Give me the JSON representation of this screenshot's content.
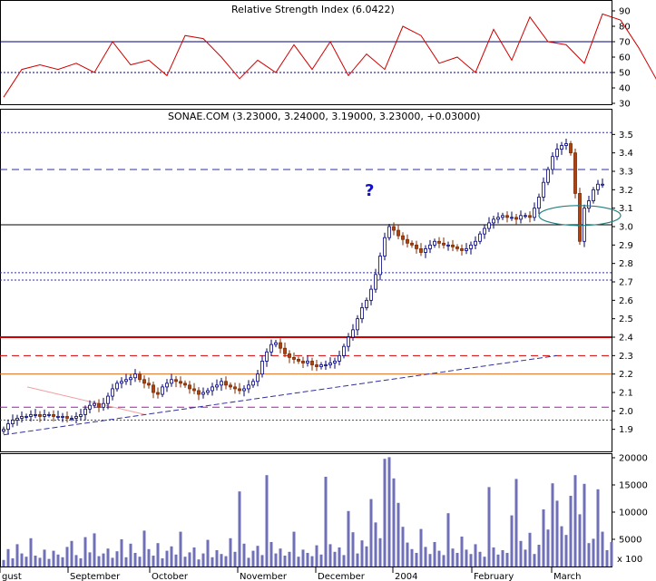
{
  "chart_data": [
    {
      "type": "line",
      "panel": "rsi",
      "title": "Relative Strength Index (6.0422)",
      "ylim": [
        30,
        90
      ],
      "yticks": [
        30,
        40,
        50,
        60,
        70,
        80,
        90
      ],
      "reference_levels": [
        70,
        50
      ],
      "series": [
        {
          "color": "#d00000",
          "x_index": [
            0,
            4,
            8,
            12,
            16,
            20,
            24,
            28,
            32,
            36,
            40,
            44,
            48,
            52,
            56,
            60,
            64,
            68,
            72,
            76,
            80,
            84,
            88,
            92,
            96,
            100,
            104,
            108,
            112,
            116,
            120,
            124,
            128,
            132,
            136,
            140,
            144,
            148
          ],
          "values": [
            34,
            52,
            55,
            52,
            56,
            50,
            70,
            55,
            58,
            48,
            74,
            72,
            60,
            46,
            58,
            50,
            68,
            52,
            70,
            48,
            62,
            52,
            80,
            74,
            56,
            60,
            50,
            78,
            58,
            86,
            70,
            68,
            56,
            88,
            84,
            66,
            45,
            55
          ]
        }
      ]
    },
    {
      "type": "candlestick",
      "panel": "price",
      "title": "SONAE.COM (3.23000, 3.24000, 3.19000, 3.23000, +0.03000)",
      "ylim": [
        1.8,
        3.6
      ],
      "yticks": [
        1.9,
        2.0,
        2.1,
        2.2,
        2.3,
        2.4,
        2.5,
        2.6,
        2.7,
        2.8,
        2.9,
        3.0,
        3.1,
        3.2,
        3.3,
        3.4,
        3.5
      ],
      "annotation_text": "?",
      "horizontal_levels": [
        {
          "value": 3.51,
          "color": "#3030a0",
          "style": "dotted"
        },
        {
          "value": 3.31,
          "color": "#3030a0",
          "style": "dashed"
        },
        {
          "value": 3.01,
          "color": "#000000",
          "style": "solid"
        },
        {
          "value": 2.75,
          "color": "#3030a0",
          "style": "dotted"
        },
        {
          "value": 2.71,
          "color": "#3030a0",
          "style": "dotted"
        },
        {
          "value": 2.4,
          "color": "#d00000",
          "style": "solid"
        },
        {
          "value": 2.3,
          "color": "#d00000",
          "style": "dashed"
        },
        {
          "value": 2.2,
          "color": "#e07020",
          "style": "solid"
        },
        {
          "value": 2.02,
          "color": "#cc00cc",
          "style": "dashed"
        },
        {
          "value": 1.95,
          "color": "#cc00cc",
          "style": "dotted"
        }
      ],
      "trendline": {
        "from": [
          0,
          1.87
        ],
        "to": [
          150,
          2.3
        ],
        "color": "#3030a0"
      },
      "highlight_ellipse": {
        "center_index": 127,
        "value": 3.06,
        "color": "#208080"
      },
      "closes": [
        1.9,
        1.93,
        1.95,
        1.96,
        1.97,
        1.97,
        1.98,
        1.98,
        1.97,
        1.98,
        1.98,
        1.97,
        1.97,
        1.97,
        1.96,
        1.96,
        1.97,
        1.98,
        2.01,
        2.03,
        2.04,
        2.02,
        2.04,
        2.08,
        2.12,
        2.15,
        2.16,
        2.17,
        2.18,
        2.2,
        2.17,
        2.15,
        2.14,
        2.1,
        2.09,
        2.13,
        2.15,
        2.17,
        2.16,
        2.15,
        2.14,
        2.12,
        2.11,
        2.09,
        2.1,
        2.11,
        2.13,
        2.14,
        2.16,
        2.14,
        2.13,
        2.12,
        2.11,
        2.12,
        2.14,
        2.16,
        2.2,
        2.27,
        2.32,
        2.36,
        2.37,
        2.34,
        2.31,
        2.29,
        2.28,
        2.27,
        2.26,
        2.27,
        2.25,
        2.24,
        2.25,
        2.25,
        2.26,
        2.27,
        2.3,
        2.35,
        2.4,
        2.44,
        2.5,
        2.56,
        2.6,
        2.66,
        2.74,
        2.84,
        2.94,
        3.0,
        2.98,
        2.95,
        2.93,
        2.91,
        2.9,
        2.88,
        2.86,
        2.88,
        2.9,
        2.92,
        2.91,
        2.9,
        2.9,
        2.89,
        2.88,
        2.87,
        2.88,
        2.9,
        2.92,
        2.96,
        2.99,
        3.02,
        3.04,
        3.05,
        3.06,
        3.05,
        3.05,
        3.04,
        3.06,
        3.06,
        3.05,
        3.1,
        3.16,
        3.24,
        3.31,
        3.38,
        3.42,
        3.44,
        3.45,
        3.4,
        3.18,
        2.92,
        3.1,
        3.14,
        3.2,
        3.23,
        3.23
      ],
      "dates_axis": [
        "gust",
        "September",
        "October",
        "November",
        "December",
        "2004",
        "February",
        "March"
      ]
    },
    {
      "type": "bar",
      "panel": "volume",
      "ylim": [
        0,
        20000
      ],
      "yticks": [
        5000,
        10000,
        15000,
        20000
      ],
      "tick_suffix_label": "x 100",
      "color": "#7070b8",
      "values": [
        1200,
        3200,
        1500,
        4100,
        2400,
        1800,
        5200,
        2000,
        1600,
        3100,
        1400,
        2900,
        2200,
        1700,
        3600,
        4700,
        2100,
        1500,
        5400,
        2600,
        6100,
        1900,
        2400,
        3300,
        1600,
        2800,
        5000,
        1700,
        4200,
        2500,
        1800,
        6600,
        3200,
        2000,
        4300,
        1500,
        2900,
        3700,
        2200,
        6400,
        1800,
        2600,
        3500,
        1300,
        2400,
        4900,
        1700,
        3000,
        2300,
        1900,
        5200,
        2700,
        13800,
        4200,
        1600,
        2900,
        3800,
        2100,
        16800,
        4500,
        2400,
        3300,
        2000,
        2700,
        6400,
        1800,
        3100,
        2500,
        1900,
        3900,
        2200,
        16500,
        4100,
        2700,
        3500,
        2100,
        10200,
        6300,
        2400,
        4800,
        3700,
        12400,
        8100,
        5200,
        19800,
        20100,
        16200,
        11700,
        7300,
        4400,
        3200,
        2500,
        6900,
        3600,
        2300,
        4500,
        2900,
        2100,
        9800,
        3300,
        2500,
        5500,
        3100,
        2300,
        4100,
        2700,
        1800,
        14600,
        3500,
        2200,
        3000,
        2500,
        9400,
        16100,
        4700,
        3100,
        6200,
        2300,
        4000,
        10500,
        6800,
        15300,
        12100,
        7400,
        5800,
        13000,
        16800,
        9600,
        15200,
        4300,
        5100,
        14200,
        6400,
        3000,
        4500
      ]
    }
  ]
}
